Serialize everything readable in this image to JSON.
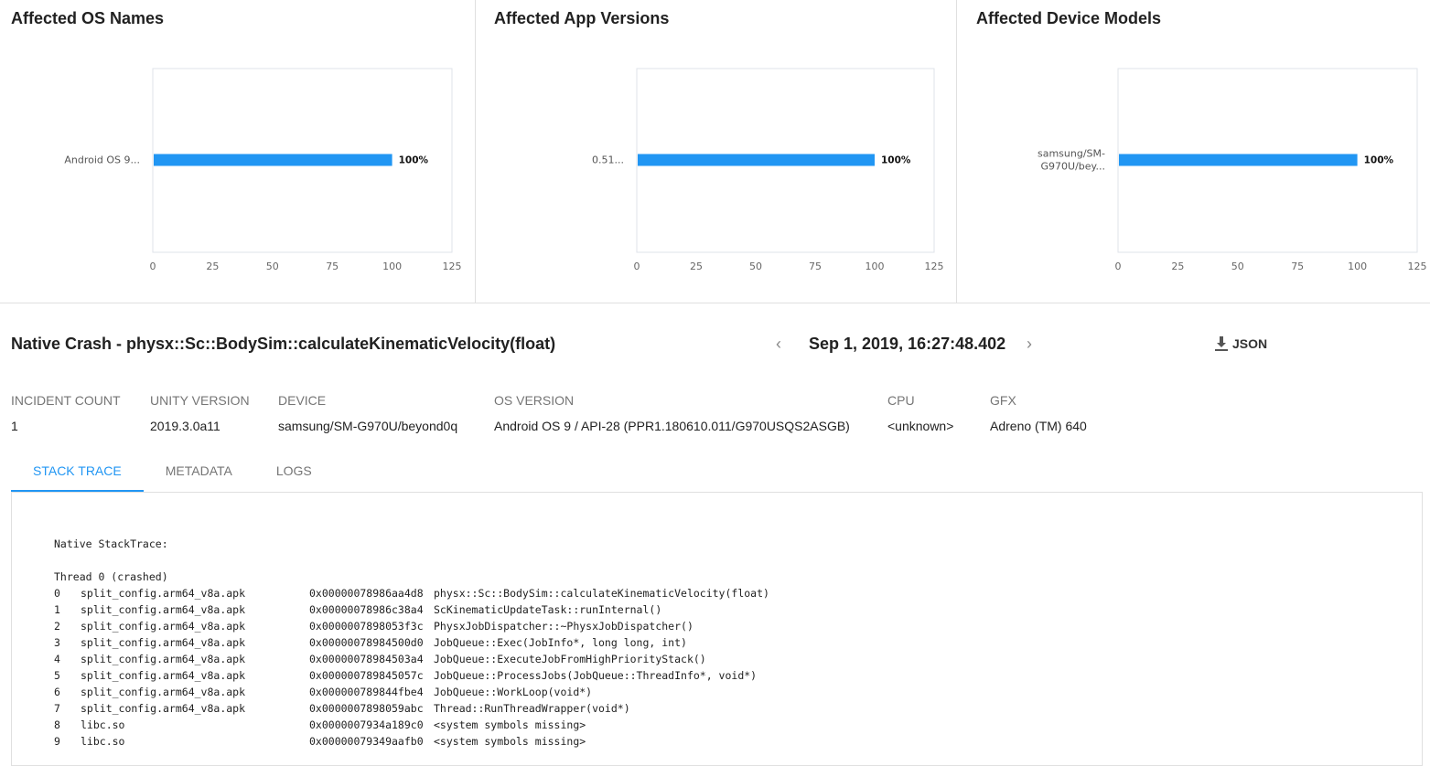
{
  "chart_data": [
    {
      "type": "bar",
      "orientation": "horizontal",
      "title": "Affected OS Names",
      "categories": [
        "Android OS 9..."
      ],
      "values": [
        100
      ],
      "data_labels": [
        "100%"
      ],
      "xlim": [
        0,
        125
      ],
      "xticks": [
        0,
        25,
        50,
        75,
        100,
        125
      ],
      "bar_color": "#2196f3",
      "grid": false
    },
    {
      "type": "bar",
      "orientation": "horizontal",
      "title": "Affected App Versions",
      "categories": [
        "0.51..."
      ],
      "values": [
        100
      ],
      "data_labels": [
        "100%"
      ],
      "xlim": [
        0,
        125
      ],
      "xticks": [
        0,
        25,
        50,
        75,
        100,
        125
      ],
      "bar_color": "#2196f3",
      "grid": false
    },
    {
      "type": "bar",
      "orientation": "horizontal",
      "title": "Affected Device Models",
      "categories": [
        "samsung/SM-\nG970U/bey..."
      ],
      "values": [
        100
      ],
      "data_labels": [
        "100%"
      ],
      "xlim": [
        0,
        125
      ],
      "xticks": [
        0,
        25,
        50,
        75,
        100,
        125
      ],
      "bar_color": "#2196f3",
      "grid": false
    }
  ],
  "crash": {
    "title": "Native Crash - physx::Sc::BodySim::calculateKinematicVelocity(float)",
    "prev_icon": "chevron-left-icon",
    "next_icon": "chevron-right-icon",
    "prev": "‹",
    "next": "›",
    "date": "Sep 1, 2019, 16:27:48.402",
    "json_label": "JSON",
    "json_icon": "download-icon"
  },
  "info": [
    {
      "label": "INCIDENT COUNT",
      "value": "1"
    },
    {
      "label": "UNITY VERSION",
      "value": "2019.3.0a11"
    },
    {
      "label": "DEVICE",
      "value": "samsung/SM-G970U/beyond0q"
    },
    {
      "label": "OS VERSION",
      "value": "Android OS 9 / API-28 (PPR1.180610.011/G970USQS2ASGB)"
    },
    {
      "label": "CPU",
      "value": "<unknown>"
    },
    {
      "label": "GFX",
      "value": "Adreno (TM) 640"
    }
  ],
  "tabs": [
    "STACK TRACE",
    "METADATA",
    "LOGS"
  ],
  "active_tab": "STACK TRACE",
  "trace": {
    "header": "Native StackTrace:",
    "thread": "Thread 0 (crashed)",
    "frames": [
      [
        "0",
        "split_config.arm64_v8a.apk",
        "0x00000078986aa4d8",
        "physx::Sc::BodySim::calculateKinematicVelocity(float)"
      ],
      [
        "1",
        "split_config.arm64_v8a.apk",
        "0x00000078986c38a4",
        "ScKinematicUpdateTask::runInternal()"
      ],
      [
        "2",
        "split_config.arm64_v8a.apk",
        "0x0000007898053f3c",
        "PhysxJobDispatcher::~PhysxJobDispatcher()"
      ],
      [
        "3",
        "split_config.arm64_v8a.apk",
        "0x00000078984500d0",
        "JobQueue::Exec(JobInfo*, long long, int)"
      ],
      [
        "4",
        "split_config.arm64_v8a.apk",
        "0x00000078984503a4",
        "JobQueue::ExecuteJobFromHighPriorityStack()"
      ],
      [
        "5",
        "split_config.arm64_v8a.apk",
        "0x000000789845057c",
        "JobQueue::ProcessJobs(JobQueue::ThreadInfo*, void*)"
      ],
      [
        "6",
        "split_config.arm64_v8a.apk",
        "0x000000789844fbe4",
        "JobQueue::WorkLoop(void*)"
      ],
      [
        "7",
        "split_config.arm64_v8a.apk",
        "0x0000007898059abc",
        "Thread::RunThreadWrapper(void*)"
      ],
      [
        "8",
        "libc.so",
        "0x0000007934a189c0",
        "<system symbols missing>"
      ],
      [
        "9",
        "libc.so",
        "0x00000079349aafb0",
        "<system symbols missing>"
      ]
    ]
  }
}
